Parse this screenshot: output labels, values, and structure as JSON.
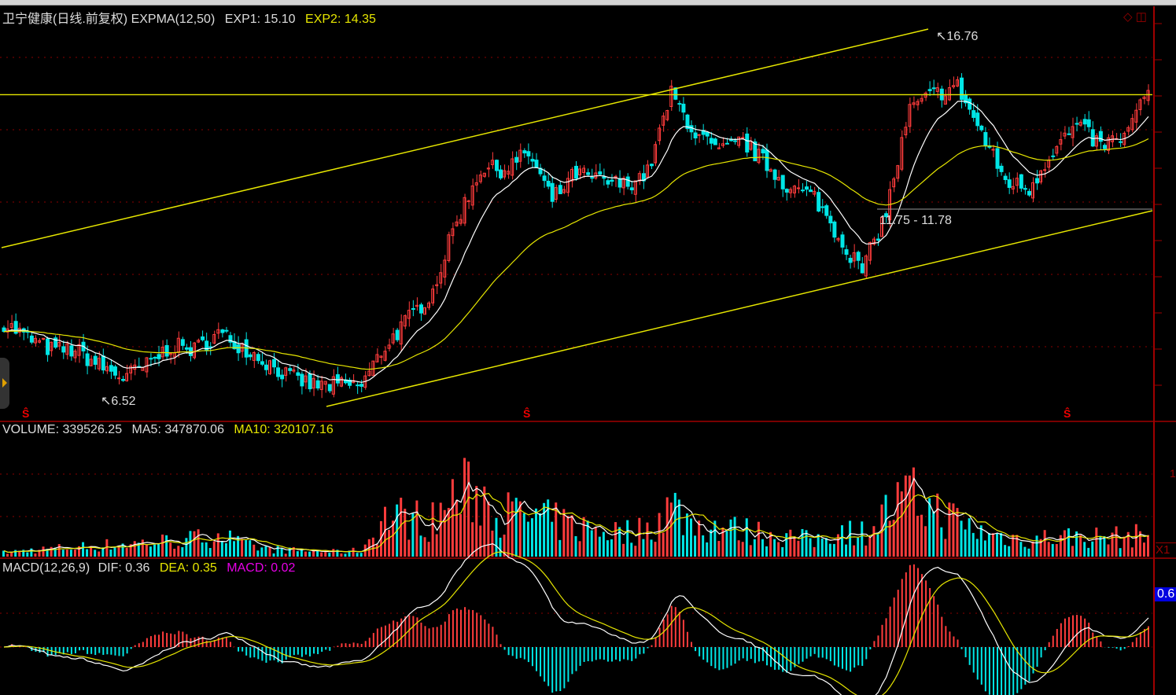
{
  "header": {
    "title": "卫宁健康(日线.前复权)",
    "indicator": "EXPMA(12,50)",
    "exp1": "EXP1: 15.10",
    "exp2": "EXP2: 14.35"
  },
  "volume_header": {
    "volume": "VOLUME: 339526.25",
    "ma5": "MA5: 347870.06",
    "ma10": "MA10: 320107.16"
  },
  "macd_header": {
    "name": "MACD(12,26,9)",
    "dif": "DIF: 0.36",
    "dea": "DEA: 0.35",
    "macd": "MACD: 0.02"
  },
  "annotations": {
    "high": "16.76",
    "low": "6.52",
    "range": "11.75 - 11.78"
  },
  "markers": {
    "s1": "Ŝ",
    "s2": "Ŝ",
    "s3": "Ŝ"
  },
  "right_axis": {
    "volume_scale": "X1",
    "macd_value": "0.6",
    "volume_tick": "1"
  },
  "colors": {
    "up": "#ff3c3c",
    "down": "#00e6e6",
    "exp1": "#ffffff",
    "exp2": "#e6e600",
    "macd": "#e600e6",
    "grid": "#8b0000",
    "trendline": "#e6e600"
  },
  "chart_data": [
    {
      "type": "candlestick",
      "title": "卫宁健康(日线.前复权)",
      "series": [
        {
          "name": "EXP1",
          "period": 12
        },
        {
          "name": "EXP2",
          "period": 50
        }
      ],
      "close_anchors": [
        8.66,
        8.23,
        7.9,
        7.9,
        7.46,
        7.13,
        7.46,
        8.01,
        7.9,
        8.34,
        8.01,
        7.57,
        7.13,
        6.91,
        6.91,
        6.91,
        8.01,
        8.77,
        9.54,
        11.51,
        12.93,
        12.93,
        13.37,
        12.06,
        12.82,
        12.6,
        12.49,
        12.82,
        15.01,
        13.92,
        13.37,
        13.7,
        13.04,
        12.38,
        12.16,
        11.07,
        10.09,
        11.73,
        14.57,
        15.01,
        15.23,
        13.92,
        12.6,
        12.38,
        13.48,
        14.13,
        13.59,
        13.81,
        15.12
      ],
      "ylim": [
        6.0,
        17.5
      ],
      "high": 16.76,
      "low": 6.52,
      "horizontal_level": 15.0,
      "grid": true
    },
    {
      "type": "bar",
      "title": "VOLUME",
      "series": [
        {
          "name": "MA5",
          "period": 5
        },
        {
          "name": "MA10",
          "period": 10
        }
      ],
      "volume_anchors": [
        62000,
        99000,
        124000,
        149000,
        174000,
        198000,
        223000,
        248000,
        273000,
        372000,
        186000,
        124000,
        99000,
        87000,
        74000,
        99000,
        620000,
        620000,
        558000,
        992000,
        992000,
        682000,
        620000,
        558000,
        471000,
        434000,
        372000,
        434000,
        806000,
        496000,
        471000,
        397000,
        372000,
        310000,
        248000,
        434000,
        372000,
        682000,
        930000,
        744000,
        558000,
        372000,
        310000,
        273000,
        310000,
        310000,
        310000,
        310000,
        339526
      ]
    },
    {
      "type": "bar",
      "title": "MACD(12,26,9)",
      "series": [
        {
          "name": "DIF"
        },
        {
          "name": "DEA"
        },
        {
          "name": "MACD"
        }
      ],
      "last": {
        "DIF": 0.36,
        "DEA": 0.35,
        "MACD": 0.02
      }
    }
  ]
}
